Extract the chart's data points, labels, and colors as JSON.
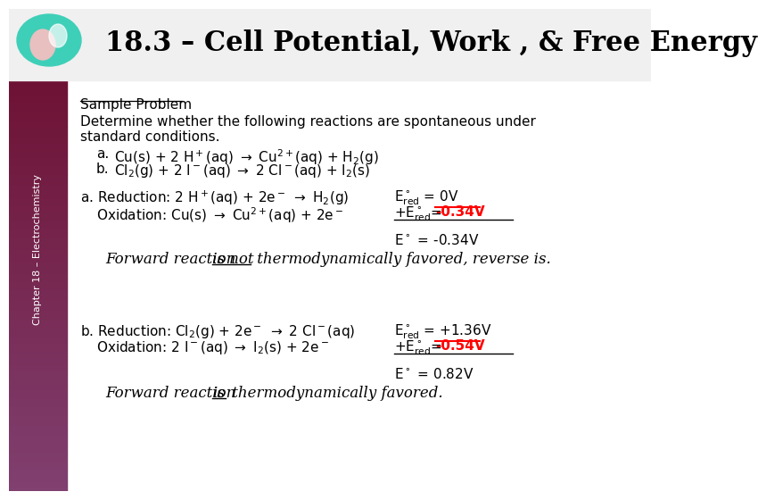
{
  "title": "18.3 – Cell Potential, Work , & Free Energy",
  "sidebar_text": "Chapter 18 – Electrochemistry",
  "background_color": "#ffffff",
  "title_fontsize": 22,
  "body_fontsize": 11
}
